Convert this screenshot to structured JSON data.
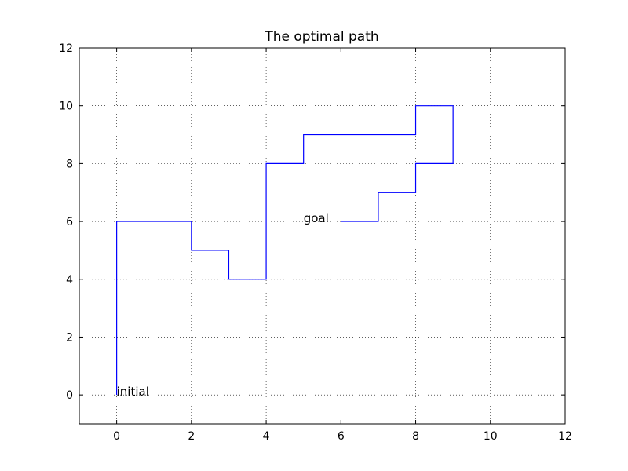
{
  "chart_data": {
    "type": "line",
    "title": "The optimal path",
    "xlabel": "",
    "ylabel": "",
    "xlim": [
      -1,
      12
    ],
    "ylim": [
      -1,
      12
    ],
    "xticks": [
      0,
      2,
      4,
      6,
      8,
      10,
      12
    ],
    "yticks": [
      0,
      2,
      4,
      6,
      8,
      10,
      12
    ],
    "xtick_labels": [
      "0",
      "2",
      "4",
      "6",
      "8",
      "10",
      "12"
    ],
    "ytick_labels": [
      "0",
      "2",
      "4",
      "6",
      "8",
      "10",
      "12"
    ],
    "grid": true,
    "series": [
      {
        "color": "#0000ff",
        "x": [
          0,
          0,
          2,
          2,
          3,
          3,
          4,
          4,
          5,
          5,
          8,
          8,
          9,
          9,
          8,
          8,
          7,
          7,
          6
        ],
        "y": [
          0,
          6,
          6,
          5,
          5,
          4,
          4,
          8,
          8,
          9,
          9,
          10,
          10,
          8,
          8,
          7,
          7,
          6,
          6
        ]
      }
    ],
    "annotations": [
      {
        "text": "initial",
        "x": 0,
        "y": 0
      },
      {
        "text": "goal",
        "x": 5,
        "y": 6
      }
    ]
  }
}
